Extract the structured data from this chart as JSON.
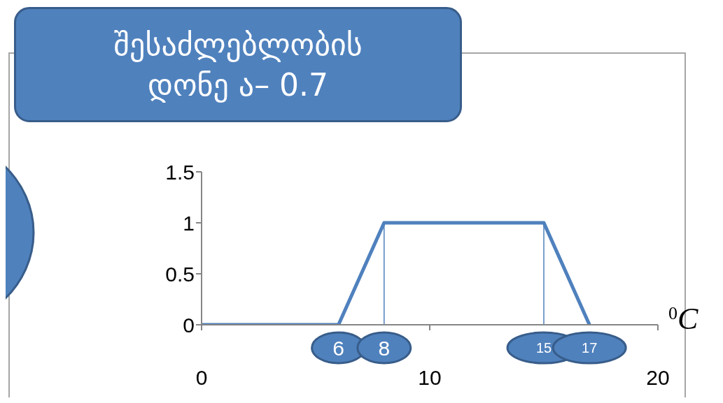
{
  "chart_data": {
    "type": "line",
    "title": "შესაძლებლობის დონე ა– 0.7",
    "xlabel": "$^{0}$C",
    "series": [
      {
        "color": "#4f81bd",
        "x": [
          0,
          6,
          8,
          15,
          17
        ],
        "values": [
          0,
          0,
          1,
          1,
          0
        ]
      },
      {
        "color": "#4f81bd",
        "x": [
          8,
          8
        ],
        "values": [
          0,
          1
        ]
      },
      {
        "color": "#4f81bd",
        "x": [
          15,
          15
        ],
        "values": [
          0,
          1
        ]
      }
    ],
    "annotations": [
      {
        "text": "6",
        "x": 6,
        "y": 0
      },
      {
        "text": "8",
        "x": 8,
        "y": 0
      },
      {
        "text": "15",
        "x": 15,
        "y": 0
      },
      {
        "text": "17",
        "x": 17,
        "y": 0
      }
    ],
    "xlim": [
      0,
      20
    ],
    "xticks": [
      0,
      10,
      20
    ],
    "ylim": [
      0,
      1.5
    ],
    "yticks": [
      0,
      0.5,
      1,
      1.5
    ]
  }
}
